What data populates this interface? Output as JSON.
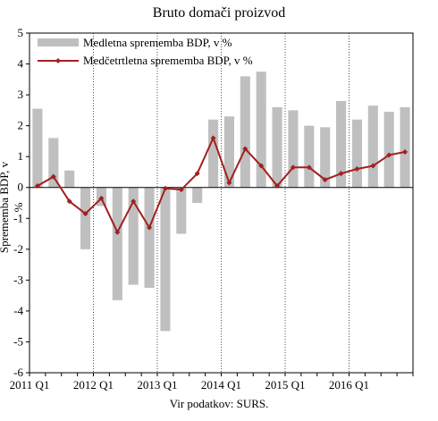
{
  "chart_data": {
    "type": "bar+line",
    "title": "Bruto domači proizvod",
    "ylabel": "Sprememba BDP, v %",
    "source": "Vir podatkov: SURS.",
    "ylim": [
      -6,
      5
    ],
    "yticks": [
      -6,
      -5,
      -4,
      -3,
      -2,
      -1,
      0,
      1,
      2,
      3,
      4,
      5
    ],
    "grid": false,
    "legend": "top-left",
    "x_tick_labels": [
      "2011 Q1",
      "2012 Q1",
      "2013 Q1",
      "2014 Q1",
      "2015 Q1",
      "2016 Q1"
    ],
    "series": [
      {
        "name": "Medletna sprememba BDP, v %",
        "kind": "bar",
        "color": "#bfbfbf",
        "values": [
          2.55,
          1.6,
          0.55,
          -2.0,
          -0.6,
          -3.65,
          -3.15,
          -3.25,
          -4.65,
          -1.5,
          -0.5,
          2.2,
          2.3,
          3.6,
          3.75,
          2.6,
          2.5,
          2.0,
          1.95,
          2.8,
          2.2,
          2.65,
          2.45,
          2.6
        ]
      },
      {
        "name": "Medčetrtletna sprememba BDP, v %",
        "kind": "line",
        "color": "#a31f1f",
        "values": [
          0.05,
          0.35,
          -0.45,
          -0.85,
          -0.35,
          -1.45,
          -0.45,
          -1.3,
          -0.03,
          -0.07,
          0.45,
          1.6,
          0.15,
          1.25,
          0.7,
          0.05,
          0.65,
          0.65,
          0.25,
          0.45,
          0.6,
          0.7,
          1.05,
          1.15
        ]
      }
    ]
  }
}
